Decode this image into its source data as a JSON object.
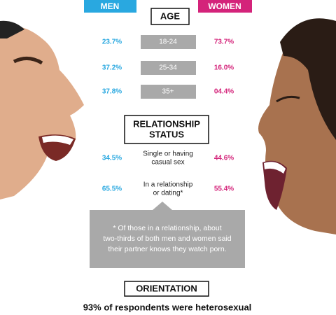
{
  "header": {
    "men": "MEN",
    "women": "WOMEN"
  },
  "age": {
    "title": "AGE",
    "rows": [
      {
        "label": "18-24",
        "men": "23.7%",
        "women": "73.7%"
      },
      {
        "label": "25-34",
        "men": "37.2%",
        "women": "16.0%"
      },
      {
        "label": "35+",
        "men": "37.8%",
        "women": "04.4%"
      }
    ]
  },
  "relationship": {
    "title": [
      "RELATIONSHIP",
      "STATUS"
    ],
    "rows": [
      {
        "label": [
          "Single or having",
          "casual sex"
        ],
        "men": "34.5%",
        "women": "44.6%"
      },
      {
        "label": [
          "In a relationship",
          "or dating*"
        ],
        "men": "65.5%",
        "women": "55.4%"
      }
    ],
    "note": [
      "* Of those in a relationship, about",
      "two-thirds of both men and women said",
      "their partner knows they watch porn."
    ]
  },
  "orientation": {
    "title": "ORIENTATION",
    "text": "93% of respondents were heterosexual"
  }
}
